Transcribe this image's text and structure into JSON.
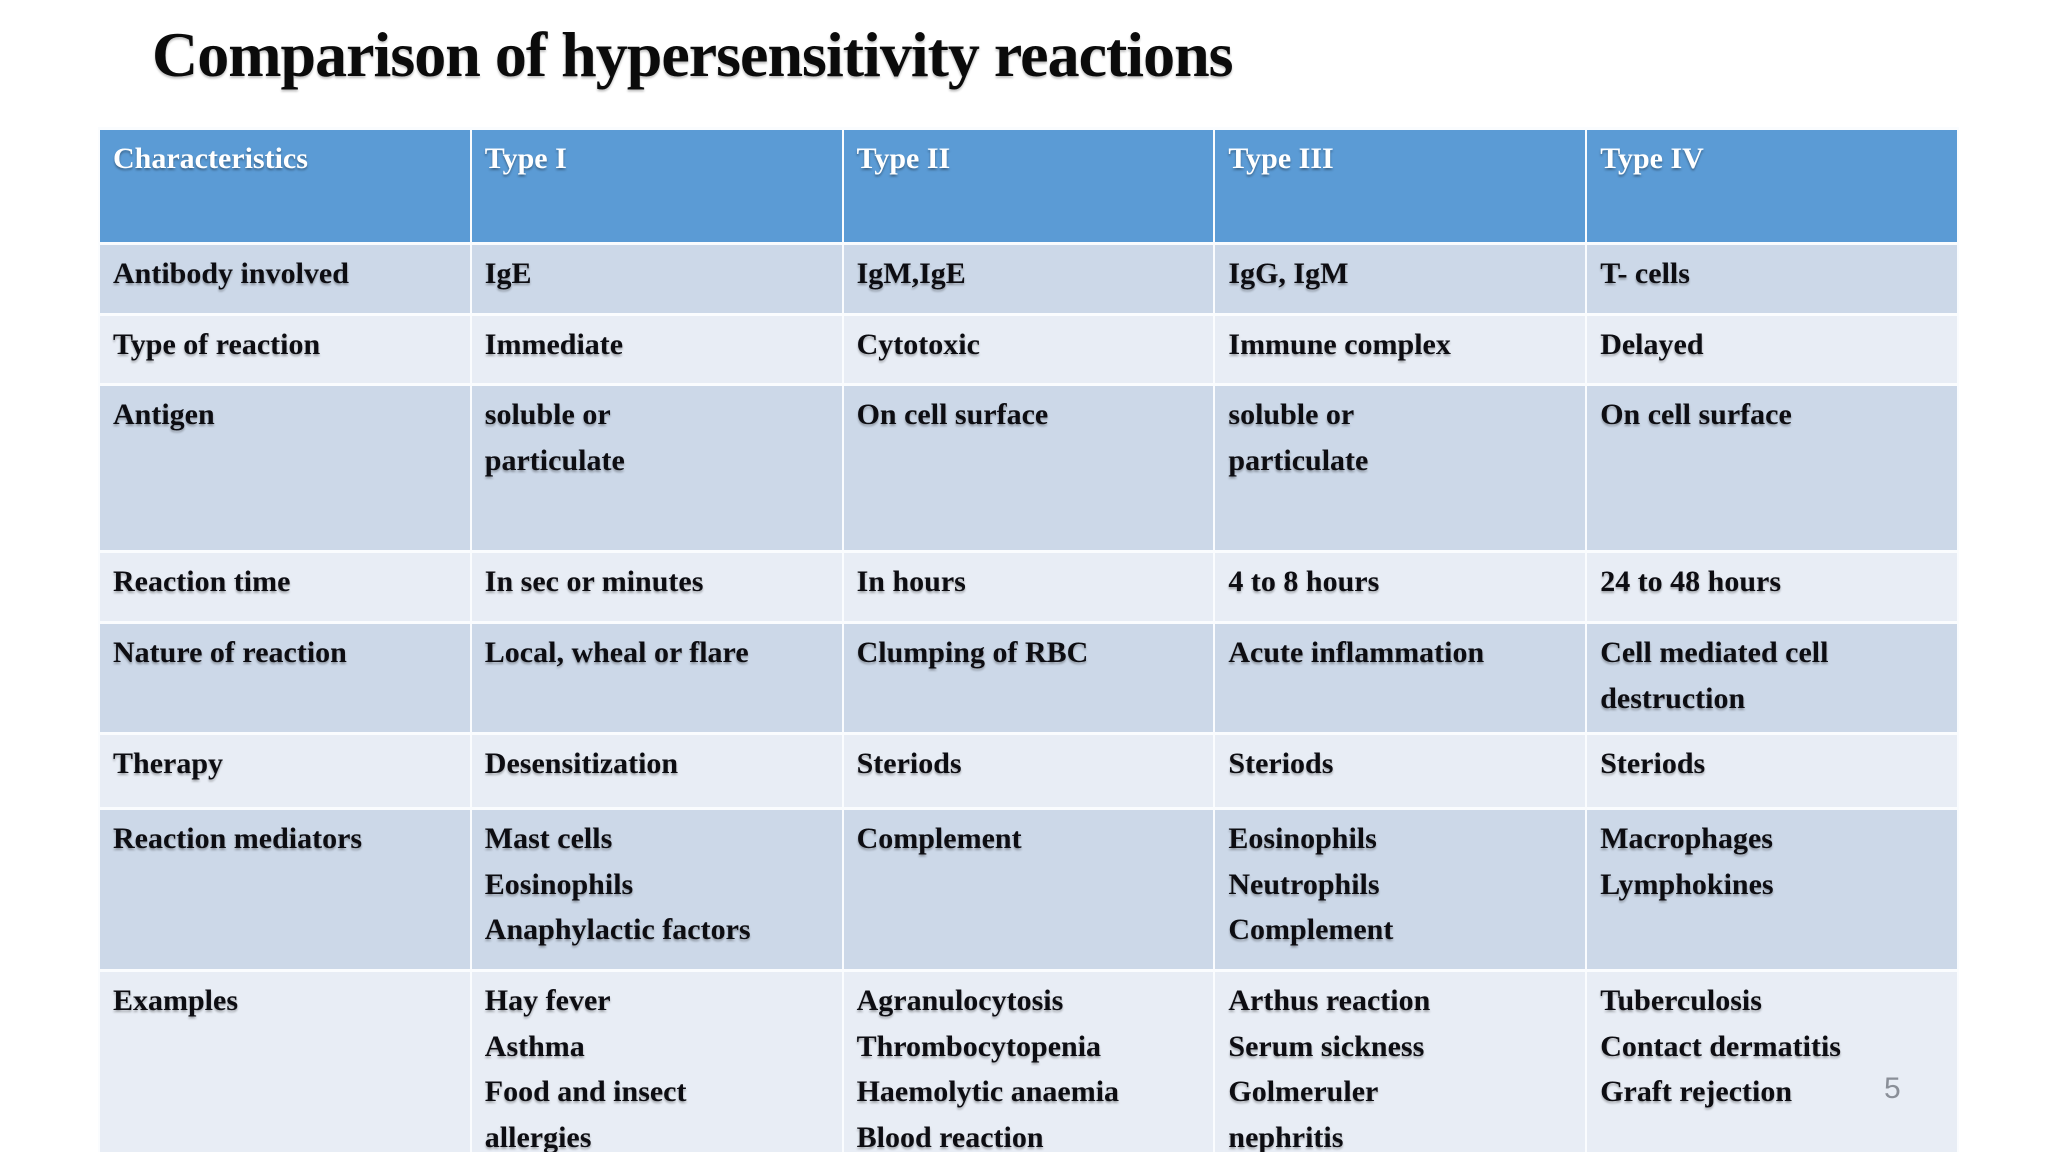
{
  "slide": {
    "title": "Comparison of hypersensitivity reactions",
    "page_number": "5"
  },
  "table": {
    "columns": [
      "Characteristics",
      "Type I",
      "Type II",
      "Type III",
      "Type IV"
    ],
    "rows": [
      {
        "label": "Antibody involved",
        "cells": [
          "IgE",
          "IgM,IgE",
          "IgG, IgM",
          "T- cells"
        ]
      },
      {
        "label": "Type of reaction",
        "cells": [
          "Immediate",
          "Cytotoxic",
          "Immune complex",
          "Delayed"
        ]
      },
      {
        "label": "Antigen",
        "cells": [
          "soluble or\nparticulate",
          "On cell surface",
          "soluble or\nparticulate",
          "On cell surface"
        ]
      },
      {
        "label": "Reaction time",
        "cells": [
          "In sec or minutes",
          "In hours",
          "4 to 8 hours",
          "24 to 48 hours"
        ]
      },
      {
        "label": "Nature of reaction",
        "cells": [
          "Local, wheal or flare",
          "Clumping of RBC",
          "Acute inflammation",
          "Cell mediated cell\ndestruction"
        ]
      },
      {
        "label": "Therapy",
        "cells": [
          "Desensitization",
          "Steriods",
          "Steriods",
          "Steriods"
        ]
      },
      {
        "label": "Reaction mediators",
        "cells": [
          "Mast cells\nEosinophils\nAnaphylactic factors",
          "Complement",
          "Eosinophils\nNeutrophils\nComplement",
          "Macrophages\nLymphokines"
        ]
      },
      {
        "label": "Examples",
        "cells": [
          "Hay fever\nAsthma\nFood and insect\nallergies",
          "Agranulocytosis\nThrombocytopenia\nHaemolytic anaemia\nBlood reaction",
          "Arthus reaction\nSerum sickness\nGolmeruler\nnephritis",
          "Tuberculosis\nContact dermatitis\nGraft rejection"
        ]
      }
    ]
  },
  "colors": {
    "header_bg": "#5b9bd5",
    "header_text": "#ffffff",
    "row_dark": "#ccd8e8",
    "row_light": "#e8edf5",
    "grid": "#fafcfe",
    "body_text": "#0d0d12",
    "page_number": "#8a8f98"
  }
}
